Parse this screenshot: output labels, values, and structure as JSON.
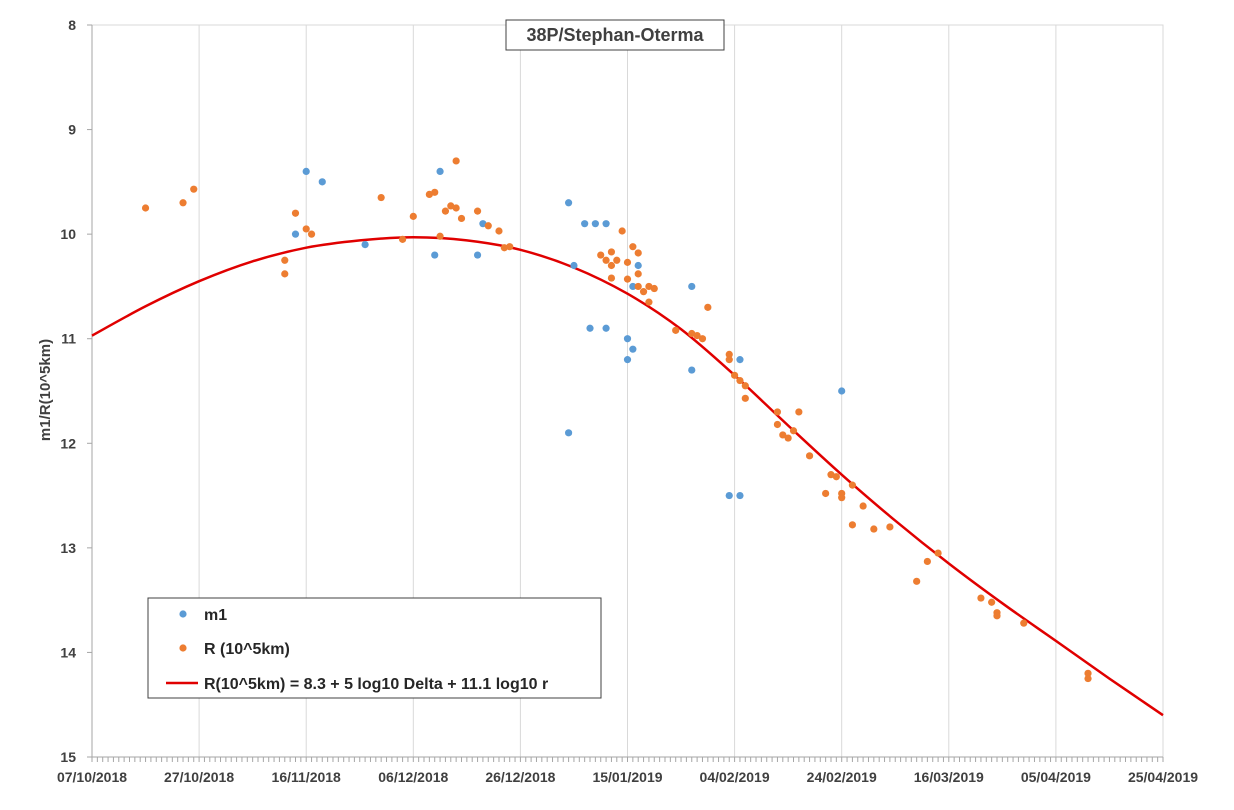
{
  "colors": {
    "m1": "#5b9bd5",
    "r": "#ed7d31",
    "fit": "#e00000",
    "grid": "#d9d9d9",
    "axis": "#a6a6a6",
    "text": "#404040"
  },
  "chart_data": {
    "type": "scatter",
    "title": "38P/Stephan-Oterma",
    "xlabel": "",
    "ylabel": "m1/R(10^5km)",
    "x_range": [
      "07/10/2018",
      "25/04/2019"
    ],
    "ylim": [
      8,
      15
    ],
    "y_inverted": true,
    "grid": "vertical",
    "legend_position": "bottom-left",
    "x_ticks": [
      "07/10/2018",
      "27/10/2018",
      "16/11/2018",
      "06/12/2018",
      "26/12/2018",
      "15/01/2019",
      "04/02/2019",
      "24/02/2019",
      "16/03/2019",
      "05/04/2019",
      "25/04/2019"
    ],
    "y_ticks": [
      "8",
      "9",
      "10",
      "11",
      "12",
      "13",
      "14",
      "15"
    ],
    "series": [
      {
        "name": "m1",
        "type": "scatter",
        "points": [
          [
            "14/11/2018",
            10.0
          ],
          [
            "16/11/2018",
            9.4
          ],
          [
            "19/11/2018",
            9.5
          ],
          [
            "27/11/2018",
            10.1
          ],
          [
            "10/12/2018",
            10.2
          ],
          [
            "11/12/2018",
            9.4
          ],
          [
            "18/12/2018",
            10.2
          ],
          [
            "19/12/2018",
            9.9
          ],
          [
            "04/01/2019",
            11.9
          ],
          [
            "04/01/2019",
            9.7
          ],
          [
            "05/01/2019",
            10.3
          ],
          [
            "07/01/2019",
            9.9
          ],
          [
            "08/01/2019",
            10.9
          ],
          [
            "09/01/2019",
            9.9
          ],
          [
            "11/01/2019",
            9.9
          ],
          [
            "11/01/2019",
            10.9
          ],
          [
            "15/01/2019",
            11.2
          ],
          [
            "15/01/2019",
            11.0
          ],
          [
            "16/01/2019",
            11.1
          ],
          [
            "16/01/2019",
            10.5
          ],
          [
            "17/01/2019",
            10.3
          ],
          [
            "27/01/2019",
            10.5
          ],
          [
            "27/01/2019",
            11.3
          ],
          [
            "03/02/2019",
            12.5
          ],
          [
            "05/02/2019",
            12.5
          ],
          [
            "05/02/2019",
            11.2
          ],
          [
            "24/02/2019",
            11.5
          ]
        ]
      },
      {
        "name": "R (10^5km)",
        "type": "scatter",
        "points": [
          [
            "17/10/2018",
            9.75
          ],
          [
            "24/10/2018",
            9.7
          ],
          [
            "26/10/2018",
            9.57
          ],
          [
            "12/11/2018",
            10.25
          ],
          [
            "12/11/2018",
            10.38
          ],
          [
            "14/11/2018",
            9.8
          ],
          [
            "16/11/2018",
            9.95
          ],
          [
            "17/11/2018",
            10.0
          ],
          [
            "30/11/2018",
            9.65
          ],
          [
            "04/12/2018",
            10.05
          ],
          [
            "06/12/2018",
            9.83
          ],
          [
            "09/12/2018",
            9.62
          ],
          [
            "10/12/2018",
            9.6
          ],
          [
            "11/12/2018",
            10.02
          ],
          [
            "12/12/2018",
            9.78
          ],
          [
            "13/12/2018",
            9.73
          ],
          [
            "14/12/2018",
            9.75
          ],
          [
            "14/12/2018",
            9.3
          ],
          [
            "15/12/2018",
            9.85
          ],
          [
            "18/12/2018",
            9.78
          ],
          [
            "20/12/2018",
            9.92
          ],
          [
            "22/12/2018",
            9.97
          ],
          [
            "23/12/2018",
            10.13
          ],
          [
            "24/12/2018",
            10.12
          ],
          [
            "10/01/2019",
            10.2
          ],
          [
            "11/01/2019",
            10.25
          ],
          [
            "12/01/2019",
            10.17
          ],
          [
            "12/01/2019",
            10.3
          ],
          [
            "12/01/2019",
            10.42
          ],
          [
            "13/01/2019",
            10.25
          ],
          [
            "14/01/2019",
            9.97
          ],
          [
            "15/01/2019",
            10.43
          ],
          [
            "15/01/2019",
            10.27
          ],
          [
            "16/01/2019",
            10.12
          ],
          [
            "17/01/2019",
            10.5
          ],
          [
            "17/01/2019",
            10.38
          ],
          [
            "17/01/2019",
            10.18
          ],
          [
            "18/01/2019",
            10.55
          ],
          [
            "19/01/2019",
            10.5
          ],
          [
            "19/01/2019",
            10.65
          ],
          [
            "20/01/2019",
            10.52
          ],
          [
            "24/01/2019",
            10.92
          ],
          [
            "27/01/2019",
            10.95
          ],
          [
            "28/01/2019",
            10.97
          ],
          [
            "29/01/2019",
            11.0
          ],
          [
            "30/01/2019",
            10.7
          ],
          [
            "03/02/2019",
            11.15
          ],
          [
            "03/02/2019",
            11.2
          ],
          [
            "04/02/2019",
            11.35
          ],
          [
            "05/02/2019",
            11.4
          ],
          [
            "06/02/2019",
            11.45
          ],
          [
            "06/02/2019",
            11.57
          ],
          [
            "12/02/2019",
            11.7
          ],
          [
            "12/02/2019",
            11.82
          ],
          [
            "13/02/2019",
            11.92
          ],
          [
            "14/02/2019",
            11.95
          ],
          [
            "15/02/2019",
            11.88
          ],
          [
            "16/02/2019",
            11.7
          ],
          [
            "18/02/2019",
            12.12
          ],
          [
            "21/02/2019",
            12.48
          ],
          [
            "22/02/2019",
            12.3
          ],
          [
            "23/02/2019",
            12.32
          ],
          [
            "24/02/2019",
            12.48
          ],
          [
            "24/02/2019",
            12.52
          ],
          [
            "26/02/2019",
            12.78
          ],
          [
            "26/02/2019",
            12.4
          ],
          [
            "28/02/2019",
            12.6
          ],
          [
            "02/03/2019",
            12.82
          ],
          [
            "05/03/2019",
            12.8
          ],
          [
            "10/03/2019",
            13.32
          ],
          [
            "12/03/2019",
            13.13
          ],
          [
            "14/03/2019",
            13.05
          ],
          [
            "22/03/2019",
            13.48
          ],
          [
            "24/03/2019",
            13.52
          ],
          [
            "25/03/2019",
            13.62
          ],
          [
            "25/03/2019",
            13.65
          ],
          [
            "30/03/2019",
            13.72
          ],
          [
            "11/04/2019",
            14.2
          ],
          [
            "11/04/2019",
            14.25
          ]
        ]
      },
      {
        "name": "R(10^5km) = 8.3 + 5 log10 Delta + 11.1 log10 r",
        "type": "line",
        "points": [
          [
            "07/10/2018",
            10.97
          ],
          [
            "17/10/2018",
            10.69
          ],
          [
            "27/10/2018",
            10.45
          ],
          [
            "06/11/2018",
            10.26
          ],
          [
            "16/11/2018",
            10.13
          ],
          [
            "26/11/2018",
            10.06
          ],
          [
            "06/12/2018",
            10.03
          ],
          [
            "16/12/2018",
            10.06
          ],
          [
            "26/12/2018",
            10.15
          ],
          [
            "05/01/2019",
            10.32
          ],
          [
            "15/01/2019",
            10.57
          ],
          [
            "25/01/2019",
            10.91
          ],
          [
            "04/02/2019",
            11.35
          ],
          [
            "14/02/2019",
            11.83
          ],
          [
            "24/02/2019",
            12.3
          ],
          [
            "06/03/2019",
            12.74
          ],
          [
            "16/03/2019",
            13.15
          ],
          [
            "26/03/2019",
            13.53
          ],
          [
            "05/04/2019",
            13.89
          ],
          [
            "15/04/2019",
            14.25
          ],
          [
            "25/04/2019",
            14.6
          ]
        ]
      }
    ]
  }
}
